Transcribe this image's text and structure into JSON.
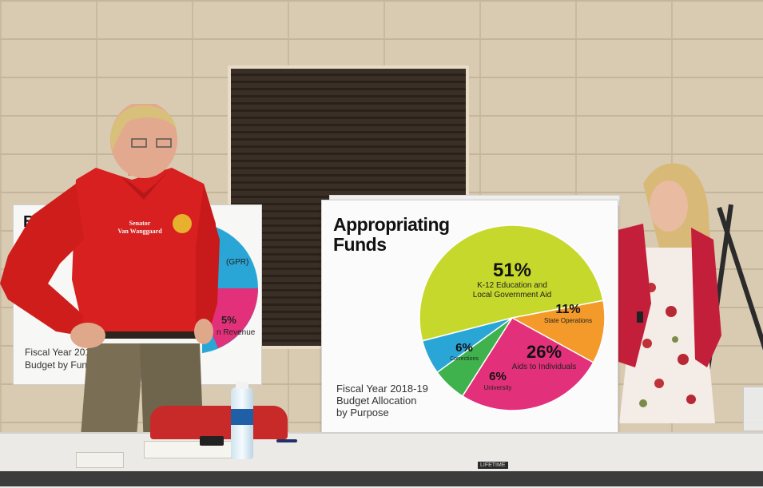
{
  "main_poster": {
    "title_line1": "Appropriating",
    "title_line2": "Funds",
    "caption_line1": "Fiscal Year 2018-19",
    "caption_line2": "Budget Allocation",
    "caption_line3": "by Purpose"
  },
  "chart_data": {
    "type": "pie",
    "slices": [
      {
        "pct_label": "51%",
        "label_line1": "K-12 Education and",
        "label_line2": "Local Government Aid",
        "value": 51,
        "color": "#c7d82c"
      },
      {
        "pct_label": "11%",
        "label_line1": "State Operations",
        "label_line2": "",
        "value": 11,
        "color": "#f39a2b"
      },
      {
        "pct_label": "26%",
        "label_line1": "Aids to Individuals",
        "label_line2": "",
        "value": 26,
        "color": "#e3307a"
      },
      {
        "pct_label": "6%",
        "label_line1": "University",
        "label_line2": "",
        "value": 6,
        "color": "#3fb24d"
      },
      {
        "pct_label": "6%",
        "label_line1": "Corrections",
        "label_line2": "",
        "value": 6,
        "color": "#2aa6d6"
      }
    ]
  },
  "left_poster": {
    "heading_partial": "B",
    "caption_line1": "Fiscal Year 201",
    "caption_line2": "Budget by Fun",
    "pie_label_top": "(GPR)",
    "pie_label_pct": "5%",
    "pie_label_bottom": "n Revenue",
    "colors": {
      "blue": "#2aa6d6",
      "magenta": "#e3307a"
    }
  },
  "shirt_embroidery": {
    "line1": "Senator",
    "line2": "Van Wanggaard"
  },
  "table_tag": "LIFETIME"
}
